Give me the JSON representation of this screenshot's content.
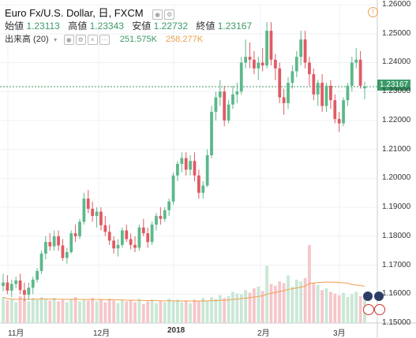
{
  "header": {
    "symbol": "Euro Fx/U.S. Dollar, 日, FXCM",
    "buttons": [
      "eye-icon",
      "settings-icon"
    ]
  },
  "ohlc": {
    "open_label": "始値",
    "open": "1.23113",
    "high_label": "高値",
    "high": "1.23343",
    "low_label": "安値",
    "low": "1.22732",
    "close_label": "終値",
    "close": "1.23167"
  },
  "volume": {
    "label": "出来高 (20)",
    "value": "251.575K",
    "ma": "258.277K"
  },
  "price_tag": "1.23167",
  "alert_icon": "alert-icon",
  "colors": {
    "up": "#5cb88a",
    "down": "#e05a63",
    "vol_up": "#c9e7d5",
    "vol_down": "#f6c6c9",
    "ma": "#f0a050",
    "accent": "#3b9a66"
  },
  "chart_data": {
    "type": "candlestick",
    "y_ticks": [
      "1.26000",
      "1.25000",
      "1.24000",
      "1.23000",
      "1.22000",
      "1.21000",
      "1.20000",
      "1.19000",
      "1.18000",
      "1.17000",
      "1.16000",
      "1.15000"
    ],
    "x_ticks": [
      "11月",
      "12月",
      "2018",
      "2月",
      "3月"
    ],
    "ylim": [
      1.15,
      1.26
    ],
    "last": 1.23167,
    "candles": [
      [
        1.1628,
        1.167,
        1.161,
        1.164
      ],
      [
        1.164,
        1.1665,
        1.16,
        1.1612
      ],
      [
        1.1612,
        1.165,
        1.159,
        1.1635
      ],
      [
        1.1635,
        1.166,
        1.162,
        1.1647
      ],
      [
        1.1647,
        1.167,
        1.16,
        1.1614
      ],
      [
        1.1614,
        1.164,
        1.1575,
        1.1598
      ],
      [
        1.1598,
        1.164,
        1.158,
        1.1622
      ],
      [
        1.1622,
        1.166,
        1.16,
        1.165
      ],
      [
        1.165,
        1.169,
        1.164,
        1.168
      ],
      [
        1.168,
        1.175,
        1.167,
        1.174
      ],
      [
        1.174,
        1.18,
        1.172,
        1.178
      ],
      [
        1.178,
        1.181,
        1.175,
        1.1765
      ],
      [
        1.1765,
        1.182,
        1.175,
        1.18
      ],
      [
        1.18,
        1.182,
        1.175,
        1.1768
      ],
      [
        1.1768,
        1.179,
        1.1715,
        1.1725
      ],
      [
        1.1725,
        1.176,
        1.1705,
        1.1745
      ],
      [
        1.1745,
        1.182,
        1.174,
        1.181
      ],
      [
        1.181,
        1.184,
        1.178,
        1.18
      ],
      [
        1.18,
        1.186,
        1.179,
        1.185
      ],
      [
        1.185,
        1.195,
        1.184,
        1.193
      ],
      [
        1.193,
        1.196,
        1.188,
        1.1895
      ],
      [
        1.1895,
        1.192,
        1.185,
        1.187
      ],
      [
        1.187,
        1.19,
        1.183,
        1.1885
      ],
      [
        1.1885,
        1.19,
        1.182,
        1.1838
      ],
      [
        1.1838,
        1.187,
        1.18,
        1.1815
      ],
      [
        1.1815,
        1.184,
        1.177,
        1.1785
      ],
      [
        1.1785,
        1.18,
        1.174,
        1.1758
      ],
      [
        1.1758,
        1.179,
        1.173,
        1.177
      ],
      [
        1.177,
        1.183,
        1.176,
        1.182
      ],
      [
        1.182,
        1.184,
        1.178,
        1.179
      ],
      [
        1.179,
        1.181,
        1.1755,
        1.177
      ],
      [
        1.177,
        1.18,
        1.1745,
        1.176
      ],
      [
        1.176,
        1.184,
        1.175,
        1.183
      ],
      [
        1.183,
        1.186,
        1.18,
        1.181
      ],
      [
        1.181,
        1.183,
        1.176,
        1.178
      ],
      [
        1.178,
        1.185,
        1.177,
        1.184
      ],
      [
        1.184,
        1.188,
        1.182,
        1.187
      ],
      [
        1.187,
        1.19,
        1.184,
        1.186
      ],
      [
        1.186,
        1.19,
        1.185,
        1.189
      ],
      [
        1.189,
        1.193,
        1.187,
        1.192
      ],
      [
        1.192,
        1.202,
        1.191,
        1.201
      ],
      [
        1.201,
        1.206,
        1.199,
        1.205
      ],
      [
        1.205,
        1.209,
        1.202,
        1.207
      ],
      [
        1.207,
        1.209,
        1.201,
        1.203
      ],
      [
        1.203,
        1.208,
        1.201,
        1.206
      ],
      [
        1.206,
        1.209,
        1.199,
        1.201
      ],
      [
        1.201,
        1.203,
        1.193,
        1.195
      ],
      [
        1.195,
        1.199,
        1.193,
        1.1975
      ],
      [
        1.1975,
        1.21,
        1.197,
        1.208
      ],
      [
        1.208,
        1.225,
        1.207,
        1.223
      ],
      [
        1.223,
        1.23,
        1.22,
        1.228
      ],
      [
        1.228,
        1.234,
        1.225,
        1.23
      ],
      [
        1.23,
        1.232,
        1.218,
        1.22
      ],
      [
        1.22,
        1.227,
        1.219,
        1.2255
      ],
      [
        1.2255,
        1.232,
        1.224,
        1.229
      ],
      [
        1.229,
        1.233,
        1.226,
        1.23
      ],
      [
        1.23,
        1.242,
        1.229,
        1.24
      ],
      [
        1.24,
        1.248,
        1.238,
        1.242
      ],
      [
        1.242,
        1.247,
        1.238,
        1.241
      ],
      [
        1.241,
        1.244,
        1.236,
        1.238
      ],
      [
        1.238,
        1.242,
        1.234,
        1.24
      ],
      [
        1.24,
        1.245,
        1.237,
        1.239
      ],
      [
        1.239,
        1.254,
        1.238,
        1.251
      ],
      [
        1.251,
        1.254,
        1.239,
        1.241
      ],
      [
        1.241,
        1.243,
        1.234,
        1.238
      ],
      [
        1.238,
        1.24,
        1.226,
        1.228
      ],
      [
        1.228,
        1.231,
        1.222,
        1.226
      ],
      [
        1.226,
        1.235,
        1.224,
        1.233
      ],
      [
        1.233,
        1.239,
        1.231,
        1.237
      ],
      [
        1.237,
        1.244,
        1.235,
        1.242
      ],
      [
        1.242,
        1.251,
        1.239,
        1.248
      ],
      [
        1.248,
        1.251,
        1.238,
        1.24
      ],
      [
        1.24,
        1.242,
        1.232,
        1.236
      ],
      [
        1.236,
        1.238,
        1.227,
        1.229
      ],
      [
        1.229,
        1.234,
        1.225,
        1.233
      ],
      [
        1.233,
        1.236,
        1.223,
        1.225
      ],
      [
        1.225,
        1.233,
        1.223,
        1.232
      ],
      [
        1.232,
        1.234,
        1.224,
        1.227
      ],
      [
        1.227,
        1.229,
        1.219,
        1.2205
      ],
      [
        1.2205,
        1.223,
        1.216,
        1.219
      ],
      [
        1.219,
        1.228,
        1.218,
        1.227
      ],
      [
        1.227,
        1.233,
        1.225,
        1.232
      ],
      [
        1.232,
        1.242,
        1.23,
        1.24
      ],
      [
        1.24,
        1.245,
        1.238,
        1.241
      ],
      [
        1.241,
        1.244,
        1.231,
        1.232
      ],
      [
        1.2311,
        1.2334,
        1.2273,
        1.2317
      ]
    ],
    "volume": [
      0.3,
      0.26,
      0.28,
      0.24,
      0.31,
      0.27,
      0.25,
      0.29,
      0.27,
      0.3,
      0.28,
      0.26,
      0.29,
      0.25,
      0.27,
      0.24,
      0.28,
      0.3,
      0.25,
      0.27,
      0.26,
      0.29,
      0.25,
      0.27,
      0.24,
      0.28,
      0.26,
      0.23,
      0.27,
      0.25,
      0.26,
      0.24,
      0.28,
      0.22,
      0.25,
      0.27,
      0.23,
      0.26,
      0.24,
      0.28,
      0.25,
      0.27,
      0.24,
      0.26,
      0.23,
      0.27,
      0.25,
      0.29,
      0.26,
      0.3,
      0.28,
      0.32,
      0.29,
      0.31,
      0.36,
      0.34,
      0.33,
      0.38,
      0.35,
      0.4,
      0.42,
      0.37,
      0.66,
      0.45,
      0.43,
      0.48,
      0.46,
      0.55,
      0.42,
      0.5,
      0.48,
      0.52,
      0.9,
      0.46,
      0.44,
      0.38,
      0.4,
      0.36,
      0.34,
      0.32,
      0.35,
      0.3,
      0.33,
      0.36,
      0.31,
      0.29
    ]
  }
}
